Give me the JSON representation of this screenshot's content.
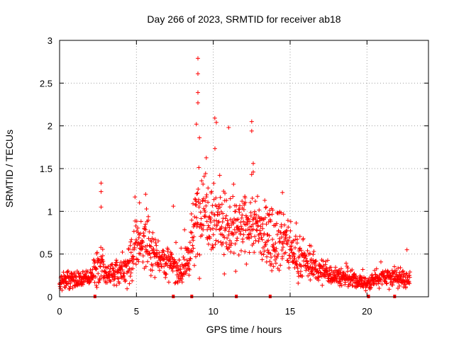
{
  "chart_data": {
    "type": "scatter",
    "title": "Day 266 of 2023, SRMTID for receiver ab18",
    "xlabel": "GPS time / hours",
    "ylabel": "SRMTID / TECUs",
    "xlim": [
      0,
      24
    ],
    "ylim": [
      0,
      3
    ],
    "xticks": [
      0,
      5,
      10,
      15,
      20
    ],
    "yticks": [
      0,
      0.5,
      1,
      1.5,
      2,
      2.5,
      3
    ],
    "xtick_labels": [
      "0",
      "5",
      "10",
      "15",
      "20"
    ],
    "ytick_labels": [
      "0",
      "0.5",
      "1",
      "1.5",
      "2",
      "2.5",
      "3"
    ],
    "grid": true,
    "marker": "plus",
    "color": "#ff0000",
    "data_span_hours": [
      0,
      22.8
    ],
    "gap_markers_x": [
      2.3,
      7.4,
      8.6,
      11.5,
      13.7,
      20.1,
      21.8
    ],
    "envelope": {
      "description": "Approximate typical SRMTID level and spread by hour (TECU), reproduced as a dense scatter of ~1500 points",
      "hours": [
        0,
        1,
        2,
        2.6,
        3,
        4,
        4.5,
        5,
        5.5,
        6,
        7,
        8,
        8.5,
        9,
        9.5,
        10,
        10.5,
        11,
        12,
        12.5,
        13,
        14,
        14.5,
        15,
        16,
        17,
        18,
        19,
        19.5,
        20,
        21,
        22,
        22.8
      ],
      "center": [
        0.2,
        0.2,
        0.22,
        0.4,
        0.25,
        0.28,
        0.35,
        0.6,
        0.65,
        0.55,
        0.4,
        0.3,
        0.5,
        1.0,
        1.1,
        0.95,
        0.9,
        0.75,
        0.8,
        0.9,
        0.75,
        0.7,
        0.7,
        0.55,
        0.4,
        0.3,
        0.25,
        0.2,
        0.18,
        0.15,
        0.25,
        0.22,
        0.2
      ],
      "spread": [
        0.1,
        0.08,
        0.08,
        0.25,
        0.1,
        0.12,
        0.2,
        0.25,
        0.25,
        0.2,
        0.15,
        0.15,
        0.25,
        0.45,
        0.4,
        0.4,
        0.35,
        0.3,
        0.3,
        0.35,
        0.3,
        0.3,
        0.3,
        0.25,
        0.15,
        0.12,
        0.1,
        0.08,
        0.07,
        0.07,
        0.1,
        0.1,
        0.1
      ]
    },
    "notable_points": [
      {
        "x": 2.7,
        "y": 1.33
      },
      {
        "x": 2.7,
        "y": 1.23
      },
      {
        "x": 2.7,
        "y": 1.05
      },
      {
        "x": 5.2,
        "y": 1.1
      },
      {
        "x": 5.6,
        "y": 1.2
      },
      {
        "x": 7.4,
        "y": 1.06
      },
      {
        "x": 9.0,
        "y": 2.79
      },
      {
        "x": 9.0,
        "y": 2.61
      },
      {
        "x": 9.0,
        "y": 2.39
      },
      {
        "x": 9.0,
        "y": 2.27
      },
      {
        "x": 8.9,
        "y": 2.02
      },
      {
        "x": 9.1,
        "y": 1.86
      },
      {
        "x": 10.1,
        "y": 2.09
      },
      {
        "x": 10.2,
        "y": 2.04
      },
      {
        "x": 11.0,
        "y": 1.98
      },
      {
        "x": 12.5,
        "y": 2.05
      },
      {
        "x": 12.5,
        "y": 1.94
      },
      {
        "x": 12.6,
        "y": 1.56
      },
      {
        "x": 12.6,
        "y": 1.46
      },
      {
        "x": 14.5,
        "y": 1.22
      },
      {
        "x": 22.6,
        "y": 0.55
      }
    ]
  }
}
